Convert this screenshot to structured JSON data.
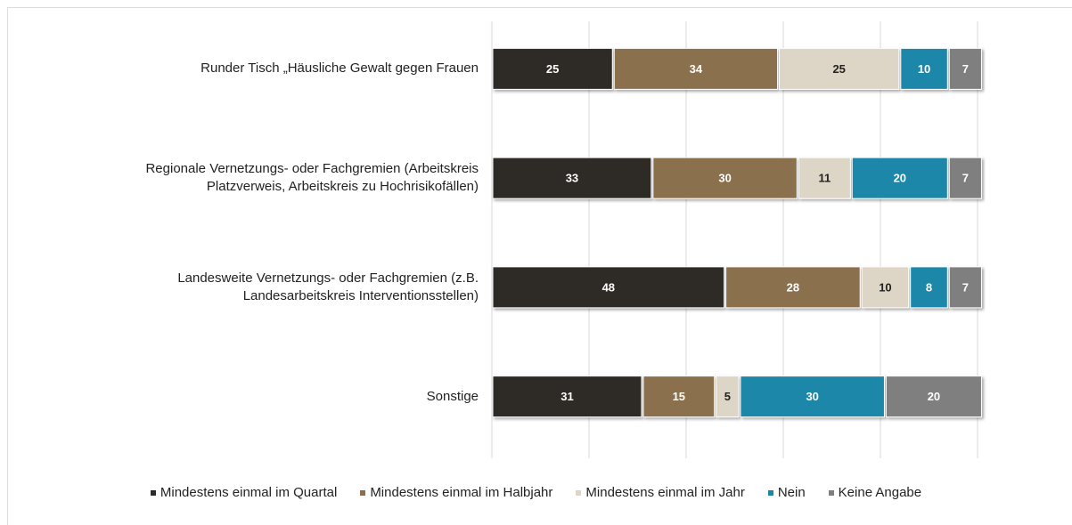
{
  "chart_data": {
    "type": "stacked-bar-horizontal",
    "categories": [
      "Runder Tisch „Häusliche Gewalt gegen Frauen",
      "Regionale Vernetzungs- oder Fachgremien (Arbeitskreis\nPlatzverweis, Arbeitskreis zu Hochrisikofällen)",
      "Landesweite Vernetzungs- oder Fachgremien (z.B.\nLandesarbeitskreis Interventionsstellen)",
      "Sonstige"
    ],
    "series": [
      {
        "name": "Mindestens einmal im Quartal",
        "color": "#2e2a27",
        "values": [
          25,
          33,
          48,
          31
        ]
      },
      {
        "name": "Mindestens einmal im Halbjahr",
        "color": "#8b6f4e",
        "values": [
          34,
          30,
          28,
          15
        ]
      },
      {
        "name": "Mindestens einmal im Jahr",
        "color": "#ddd5c6",
        "values": [
          25,
          11,
          10,
          5
        ]
      },
      {
        "name": "Nein",
        "color": "#1a87a8",
        "values": [
          10,
          20,
          8,
          30
        ]
      },
      {
        "name": "Keine Angabe",
        "color": "#7f7f7f",
        "values": [
          7,
          7,
          7,
          20
        ]
      }
    ],
    "xlim": [
      0,
      101
    ],
    "xticks": [
      0,
      20,
      40,
      60,
      80,
      100
    ],
    "grid": true,
    "legend": "bottom"
  }
}
